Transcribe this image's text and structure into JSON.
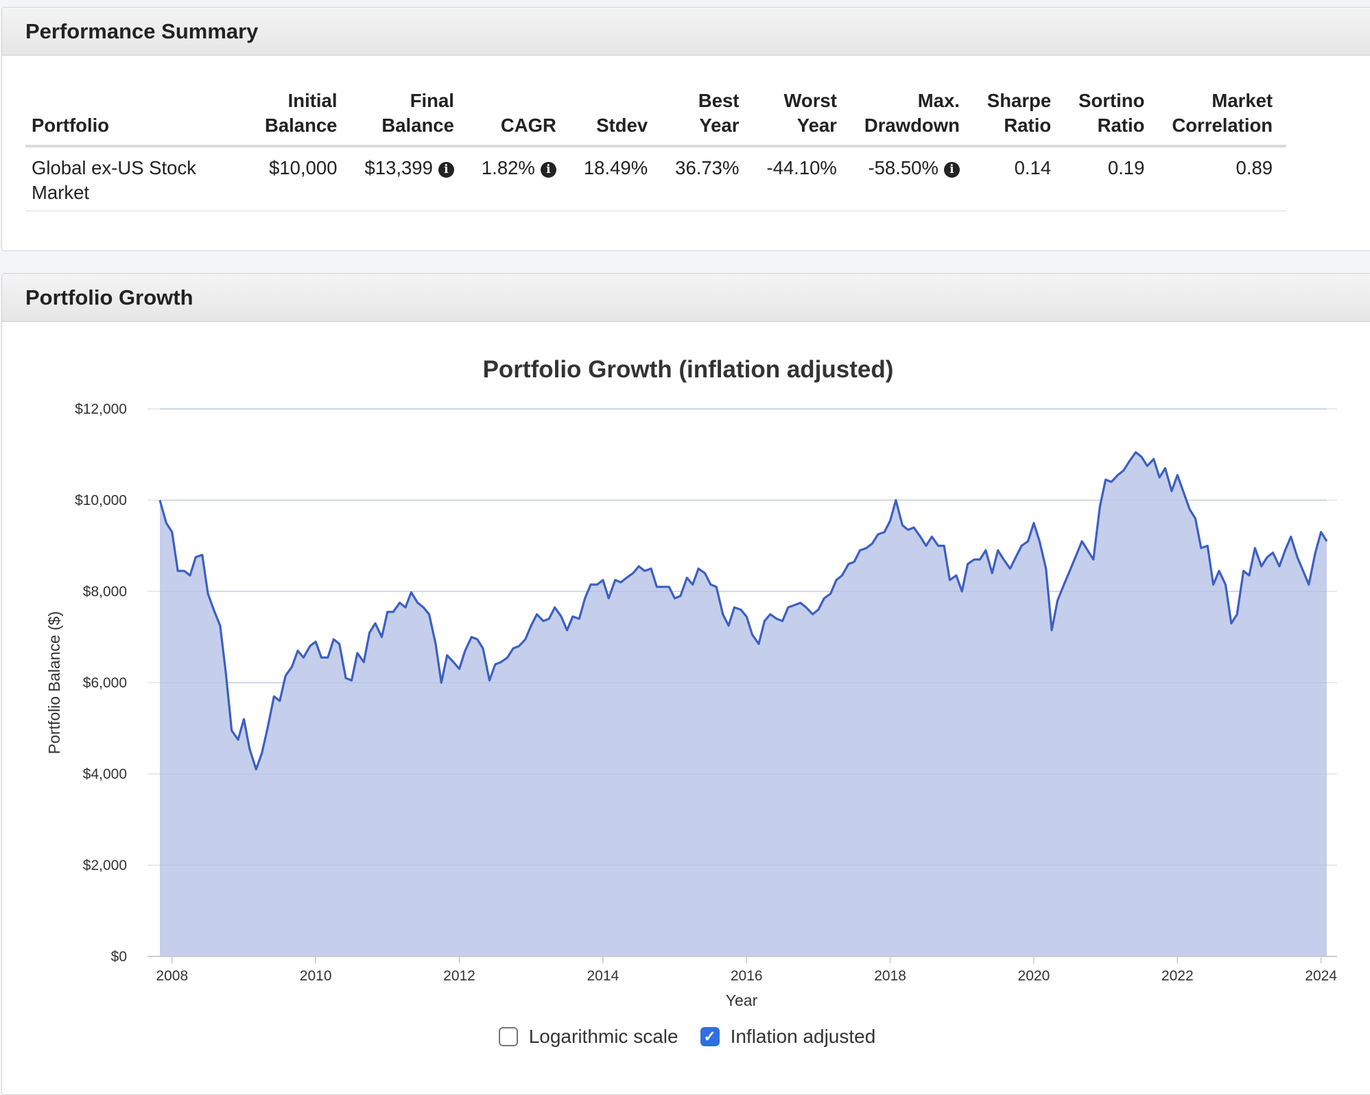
{
  "performance": {
    "title": "Performance Summary",
    "headers": [
      {
        "line1": "",
        "line2": "Portfolio"
      },
      {
        "line1": "Initial",
        "line2": "Balance"
      },
      {
        "line1": "Final",
        "line2": "Balance"
      },
      {
        "line1": "",
        "line2": "CAGR"
      },
      {
        "line1": "",
        "line2": "Stdev"
      },
      {
        "line1": "Best",
        "line2": "Year"
      },
      {
        "line1": "Worst",
        "line2": "Year"
      },
      {
        "line1": "Max.",
        "line2": "Drawdown"
      },
      {
        "line1": "Sharpe",
        "line2": "Ratio"
      },
      {
        "line1": "Sortino",
        "line2": "Ratio"
      },
      {
        "line1": "Market",
        "line2": "Correlation"
      }
    ],
    "row": {
      "portfolio": "Global ex-US Stock Market",
      "initial_balance": "$10,000",
      "final_balance": "$13,399",
      "cagr": "1.82%",
      "stdev": "18.49%",
      "best_year": "36.73%",
      "worst_year": "-44.10%",
      "max_drawdown": "-58.50%",
      "sharpe": "0.14",
      "sortino": "0.19",
      "market_correlation": "0.89"
    },
    "info_icon": "info-circle-icon"
  },
  "growth": {
    "title": "Portfolio Growth",
    "controls": {
      "log_scale_label": "Logarithmic scale",
      "log_scale_checked": false,
      "inflation_label": "Inflation adjusted",
      "inflation_checked": true
    }
  },
  "chart_data": {
    "type": "area",
    "title": "Portfolio Growth (inflation adjusted)",
    "xlabel": "Year",
    "ylabel": "Portfolio Balance ($)",
    "ylim": [
      0,
      12000
    ],
    "yticks": [
      "$0",
      "$2,000",
      "$4,000",
      "$6,000",
      "$8,000",
      "$10,000",
      "$12,000"
    ],
    "ytick_values": [
      0,
      2000,
      4000,
      6000,
      8000,
      10000,
      12000
    ],
    "xticks": [
      "2008",
      "2010",
      "2012",
      "2014",
      "2016",
      "2018",
      "2020",
      "2022",
      "2024"
    ],
    "xtick_values": [
      2008,
      2010,
      2012,
      2014,
      2016,
      2018,
      2020,
      2022,
      2024
    ],
    "grid": true,
    "fill_color": "#c5cfec",
    "line_color": "#3d5fc4",
    "series": [
      {
        "x": [
          2007.83,
          2007.92,
          2008.0,
          2008.08,
          2008.17,
          2008.25,
          2008.33,
          2008.42,
          2008.5,
          2008.58,
          2008.67,
          2008.75,
          2008.83,
          2008.92,
          2009.0,
          2009.08,
          2009.17,
          2009.25,
          2009.33,
          2009.42,
          2009.5,
          2009.58,
          2009.67,
          2009.75,
          2009.83,
          2009.92,
          2010.0,
          2010.08,
          2010.17,
          2010.25,
          2010.33,
          2010.42,
          2010.5,
          2010.58,
          2010.67,
          2010.75,
          2010.83,
          2010.92,
          2011.0,
          2011.08,
          2011.17,
          2011.25,
          2011.33,
          2011.42,
          2011.5,
          2011.58,
          2011.67,
          2011.75,
          2011.83,
          2011.92,
          2012.0,
          2012.08,
          2012.17,
          2012.25,
          2012.33,
          2012.42,
          2012.5,
          2012.58,
          2012.67,
          2012.75,
          2012.83,
          2012.92,
          2013.0,
          2013.08,
          2013.17,
          2013.25,
          2013.33,
          2013.42,
          2013.5,
          2013.58,
          2013.67,
          2013.75,
          2013.83,
          2013.92,
          2014.0,
          2014.08,
          2014.17,
          2014.25,
          2014.33,
          2014.42,
          2014.5,
          2014.58,
          2014.67,
          2014.75,
          2014.83,
          2014.92,
          2015.0,
          2015.08,
          2015.17,
          2015.25,
          2015.33,
          2015.42,
          2015.5,
          2015.58,
          2015.67,
          2015.75,
          2015.83,
          2015.92,
          2016.0,
          2016.08,
          2016.17,
          2016.25,
          2016.33,
          2016.42,
          2016.5,
          2016.58,
          2016.67,
          2016.75,
          2016.83,
          2016.92,
          2017.0,
          2017.08,
          2017.17,
          2017.25,
          2017.33,
          2017.42,
          2017.5,
          2017.58,
          2017.67,
          2017.75,
          2017.83,
          2017.92,
          2018.0,
          2018.08,
          2018.17,
          2018.25,
          2018.33,
          2018.42,
          2018.5,
          2018.58,
          2018.67,
          2018.75,
          2018.83,
          2018.92,
          2019.0,
          2019.08,
          2019.17,
          2019.25,
          2019.33,
          2019.42,
          2019.5,
          2019.58,
          2019.67,
          2019.75,
          2019.83,
          2019.92,
          2020.0,
          2020.08,
          2020.17,
          2020.25,
          2020.33,
          2020.42,
          2020.5,
          2020.58,
          2020.67,
          2020.75,
          2020.83,
          2020.92,
          2021.0,
          2021.08,
          2021.17,
          2021.25,
          2021.33,
          2021.42,
          2021.5,
          2021.58,
          2021.67,
          2021.75,
          2021.83,
          2021.92,
          2022.0,
          2022.08,
          2022.17,
          2022.25,
          2022.33,
          2022.42,
          2022.5,
          2022.58,
          2022.67,
          2022.75,
          2022.83,
          2022.92,
          2023.0,
          2023.08,
          2023.17,
          2023.25,
          2023.33,
          2023.42,
          2023.5,
          2023.58,
          2023.67,
          2023.75,
          2023.83,
          2023.92,
          2024.0,
          2024.08
        ],
        "values": [
          10000,
          9500,
          9300,
          8450,
          8450,
          8350,
          8750,
          8800,
          7950,
          7600,
          7250,
          6200,
          4950,
          4750,
          5200,
          4550,
          4100,
          4450,
          5000,
          5700,
          5600,
          6150,
          6350,
          6700,
          6550,
          6800,
          6900,
          6550,
          6550,
          6950,
          6850,
          6100,
          6050,
          6650,
          6450,
          7100,
          7300,
          7000,
          7550,
          7550,
          7750,
          7650,
          7980,
          7750,
          7650,
          7500,
          6850,
          6000,
          6600,
          6450,
          6300,
          6700,
          7000,
          6950,
          6750,
          6050,
          6400,
          6450,
          6550,
          6750,
          6800,
          6950,
          7250,
          7500,
          7350,
          7400,
          7650,
          7450,
          7150,
          7450,
          7400,
          7850,
          8150,
          8150,
          8250,
          7850,
          8250,
          8200,
          8300,
          8400,
          8550,
          8450,
          8500,
          8100,
          8100,
          8100,
          7850,
          7900,
          8300,
          8150,
          8500,
          8400,
          8150,
          8100,
          7500,
          7250,
          7650,
          7600,
          7450,
          7050,
          6850,
          7350,
          7500,
          7400,
          7350,
          7650,
          7700,
          7750,
          7650,
          7500,
          7600,
          7850,
          7950,
          8250,
          8350,
          8600,
          8650,
          8900,
          8950,
          9050,
          9250,
          9300,
          9550,
          10000,
          9450,
          9350,
          9400,
          9200,
          9000,
          9200,
          9000,
          9000,
          8250,
          8350,
          8000,
          8600,
          8700,
          8700,
          8900,
          8400,
          8900,
          8700,
          8500,
          8750,
          9000,
          9100,
          9500,
          9100,
          8500,
          7150,
          7800,
          8150,
          8450,
          8750,
          9100,
          8900,
          8700,
          9850,
          10450,
          10400,
          10550,
          10650,
          10850,
          11050,
          10950,
          10750,
          10900,
          10500,
          10700,
          10200,
          10550,
          10200,
          9800,
          9600,
          8950,
          9000,
          8150,
          8450,
          8150,
          7300,
          7500,
          8450,
          8350,
          8950,
          8550,
          8750,
          8850,
          8550,
          8900,
          9200,
          8750,
          8450,
          8150,
          8850,
          9300,
          9100
        ]
      }
    ]
  }
}
